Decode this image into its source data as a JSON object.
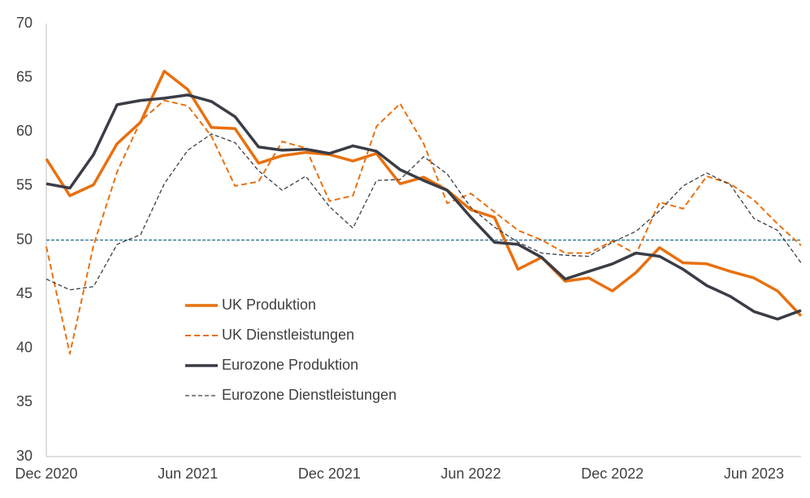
{
  "chart_data": {
    "type": "line",
    "categories": [
      "Dec 2020",
      null,
      null,
      null,
      null,
      null,
      "Jun 2021",
      null,
      null,
      null,
      null,
      null,
      "Dec 2021",
      null,
      null,
      null,
      null,
      null,
      "Jun 2022",
      null,
      null,
      null,
      null,
      null,
      "Dec 2022",
      null,
      null,
      null,
      null,
      null,
      "Jun 2023",
      null,
      null
    ],
    "ylim": [
      30,
      70
    ],
    "yticks": [
      30,
      35,
      40,
      45,
      50,
      55,
      60,
      65,
      70
    ],
    "reference_line": 50,
    "reference_line_color": "#1f6e8c",
    "grid": false,
    "series": [
      {
        "name": "UK Produktion",
        "color": "#e8700f",
        "dashed": false,
        "width": 3.5,
        "values": [
          57.5,
          54.1,
          55.1,
          58.9,
          60.9,
          65.6,
          63.9,
          60.4,
          60.3,
          57.1,
          57.8,
          58.1,
          57.9,
          57.3,
          58.0,
          55.2,
          55.8,
          54.6,
          52.8,
          52.1,
          47.3,
          48.4,
          46.2,
          46.5,
          45.3,
          47.0,
          49.3,
          47.9,
          47.8,
          47.1,
          46.5,
          45.3,
          43.0
        ]
      },
      {
        "name": "UK Dienstleistungen",
        "color": "#e8700f",
        "dashed": true,
        "width": 2,
        "values": [
          49.4,
          39.5,
          49.5,
          56.3,
          61.0,
          62.9,
          62.4,
          59.6,
          55.0,
          55.4,
          59.1,
          58.5,
          53.6,
          54.1,
          60.5,
          62.6,
          58.9,
          53.4,
          54.3,
          52.6,
          50.9,
          50.0,
          48.8,
          48.8,
          49.9,
          48.7,
          53.5,
          52.9,
          55.9,
          55.2,
          53.7,
          51.5,
          49.5
        ]
      },
      {
        "name": "Eurozone Produktion",
        "color": "#3a3d46",
        "dashed": false,
        "width": 3.5,
        "values": [
          55.2,
          54.8,
          57.9,
          62.5,
          62.9,
          63.1,
          63.4,
          62.8,
          61.4,
          58.6,
          58.3,
          58.4,
          58.0,
          58.7,
          58.2,
          56.5,
          55.5,
          54.6,
          52.1,
          49.8,
          49.6,
          48.4,
          46.4,
          47.1,
          47.8,
          48.8,
          48.5,
          47.3,
          45.8,
          44.8,
          43.4,
          42.7,
          43.5
        ]
      },
      {
        "name": "Eurozone Dienstleistungen",
        "color": "#3a3d46",
        "dashed": true,
        "width": 1.3,
        "values": [
          46.4,
          45.4,
          45.7,
          49.6,
          50.5,
          55.2,
          58.3,
          59.8,
          59.0,
          56.4,
          54.6,
          55.9,
          53.1,
          51.1,
          55.5,
          55.6,
          57.7,
          56.1,
          53.0,
          51.2,
          49.8,
          48.8,
          48.6,
          48.5,
          49.8,
          50.8,
          52.7,
          55.0,
          56.2,
          55.1,
          52.0,
          50.9,
          47.9
        ]
      }
    ]
  }
}
